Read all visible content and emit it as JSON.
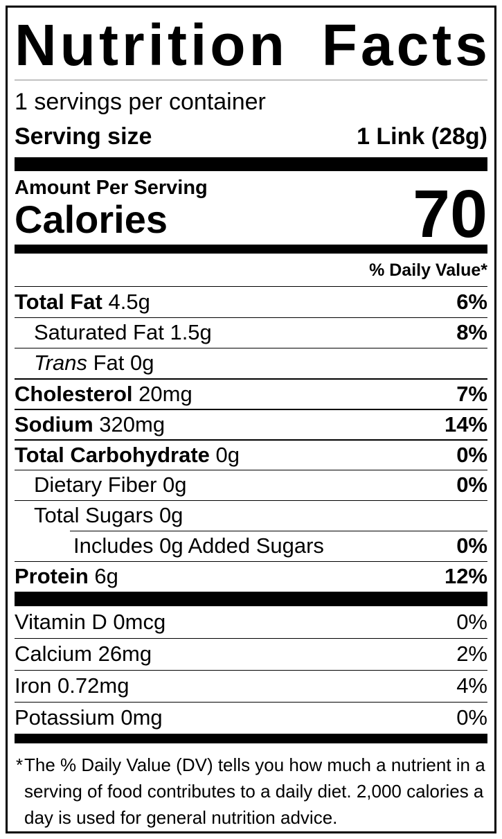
{
  "colors": {
    "ink": "#000000",
    "paper": "#ffffff"
  },
  "header": {
    "title_word1": "Nutrition",
    "title_word2": "Facts",
    "servings_per_container": "1 servings per container",
    "serving_size_label": "Serving size",
    "serving_size_value": "1 Link (28g)"
  },
  "calories": {
    "amount_per_serving": "Amount Per Serving",
    "label": "Calories",
    "value": "70"
  },
  "daily_value_header": "% Daily Value*",
  "nutrients": [
    {
      "lead": "Total Fat",
      "rest": " 4.5g",
      "dv": "6%"
    },
    {
      "lead": "Saturated Fat",
      "rest": " 1.5g",
      "dv": "8%"
    },
    {
      "lead": "Trans",
      "rest": " Fat 0g",
      "dv": ""
    },
    {
      "lead": "Cholesterol",
      "rest": " 20mg",
      "dv": "7%"
    },
    {
      "lead": "Sodium",
      "rest": " 320mg",
      "dv": "14%"
    },
    {
      "lead": "Total Carbohydrate",
      "rest": " 0g",
      "dv": "0%"
    },
    {
      "lead": "Dietary Fiber",
      "rest": " 0g",
      "dv": "0%"
    },
    {
      "lead": "Total Sugars",
      "rest": " 0g",
      "dv": ""
    },
    {
      "lead": "Includes 0g Added Sugars",
      "rest": "",
      "dv": "0%"
    },
    {
      "lead": "Protein",
      "rest": " 6g",
      "dv": "12%"
    }
  ],
  "micronutrients": [
    {
      "text": "Vitamin D 0mcg",
      "dv": "0%"
    },
    {
      "text": "Calcium 26mg",
      "dv": "2%"
    },
    {
      "text": "Iron 0.72mg",
      "dv": "4%"
    },
    {
      "text": "Potassium 0mg",
      "dv": "0%"
    }
  ],
  "footnote": {
    "asterisk": "*",
    "line1": "The % Daily Value (DV) tells you how much a nutrient in a",
    "line2": "serving of food contributes to a daily diet. 2,000 calories a",
    "line3": "day is used for general nutrition advice."
  }
}
